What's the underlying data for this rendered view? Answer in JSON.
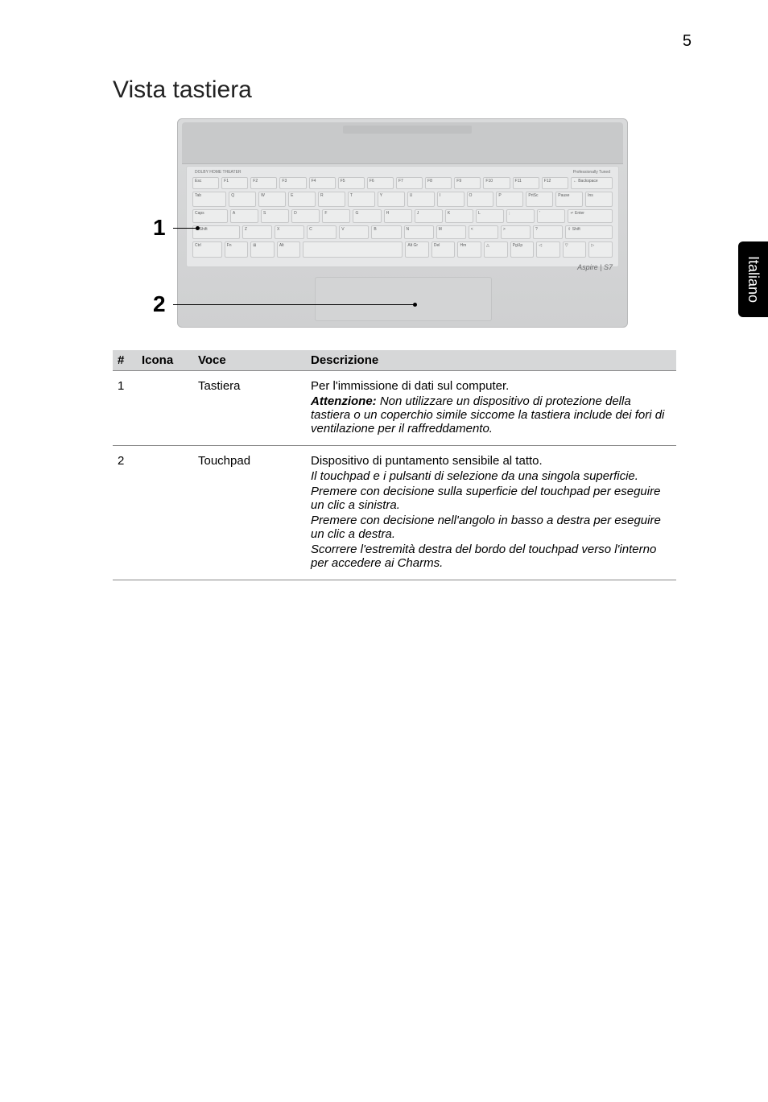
{
  "page_number": "5",
  "side_tab": "Italiano",
  "heading": "Vista tastiera",
  "figure": {
    "brand": "Aspire | S7",
    "kb_top_left": "DOLBY HOME THEATER",
    "kb_top_right": "Professionally Tuned",
    "callouts": {
      "one": "1",
      "two": "2"
    },
    "row0": [
      "Esc",
      "F1",
      "F2",
      "F3",
      "F4",
      "F5",
      "F6",
      "F7",
      "F8",
      "F9",
      "F10",
      "F11",
      "F12",
      "← Backspace"
    ],
    "row1": [
      "Tab",
      "Q",
      "W",
      "E",
      "R",
      "T",
      "Y",
      "U",
      "I",
      "O",
      "P",
      "PrtSc",
      "Pause",
      "Ins"
    ],
    "row2": [
      "Caps",
      "A",
      "S",
      "D",
      "F",
      "G",
      "H",
      "J",
      "K",
      "L",
      ";",
      "'",
      "↵ Enter"
    ],
    "row3": [
      "⇧ Shift",
      "Z",
      "X",
      "C",
      "V",
      "B",
      "N",
      "M",
      "<",
      ">",
      "?",
      "⇧ Shift"
    ],
    "row4": [
      "Ctrl",
      "Fn",
      "⊞",
      "Alt",
      "",
      "Alt Gr",
      "Del",
      "Hm",
      "△",
      "PgUp",
      "◁",
      "▽",
      "▷"
    ]
  },
  "table": {
    "headers": {
      "num": "#",
      "icon": "Icona",
      "voce": "Voce",
      "desc": "Descrizione"
    },
    "rows": [
      {
        "num": "1",
        "voce": "Tastiera",
        "desc": {
          "l1": "Per l'immissione di dati sul computer.",
          "l2a": "Attenzione:",
          "l2b": " Non utilizzare un dispositivo di protezione della tastiera o un coperchio simile siccome la tastiera include dei fori di ventilazione per il raffreddamento."
        }
      },
      {
        "num": "2",
        "voce": "Touchpad",
        "desc": {
          "l1": "Dispositivo di puntamento sensibile al tatto.",
          "l2": "Il touchpad e i pulsanti di selezione da una singola superficie.",
          "l3": "Premere con decisione sulla superficie del touchpad per eseguire un clic a sinistra.",
          "l4": "Premere con decisione nell'angolo in basso a destra per eseguire un clic a destra.",
          "l5": "Scorrere l'estremità destra del bordo del touchpad verso l'interno per accedere ai Charms."
        }
      }
    ]
  }
}
